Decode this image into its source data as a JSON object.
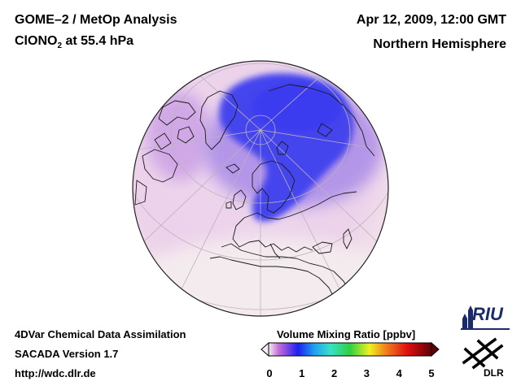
{
  "header": {
    "title_left": "GOME–2 / MetOp Analysis",
    "species_prefix": "ClONO",
    "species_sub": "2",
    "species_suffix": " at 55.4 hPa",
    "date": "Apr 12, 2009, 12:00 GMT",
    "region": "Northern Hemisphere"
  },
  "footer": {
    "line1": "4DVar Chemical Data Assimilation",
    "line2": "SACADA Version 1.7",
    "line3": "http://wdc.dlr.de"
  },
  "colorbar": {
    "title": "Volume Mixing Ratio [ppbv]",
    "ticks": [
      "0",
      "1",
      "2",
      "3",
      "4",
      "5"
    ],
    "stops": [
      "#f2eef2",
      "#c76fd8",
      "#1f1ff0",
      "#1fa0f0",
      "#38e0c8",
      "#30d040",
      "#f0f020",
      "#f08020",
      "#e01010",
      "#600008"
    ]
  },
  "map": {
    "palette": {
      "background": "#eed6ee",
      "pale": "#f6ecec",
      "high": "#4a4aee",
      "mid": "#b090e8",
      "coast": "#1a1a1a",
      "grid": "#c0b8c0"
    }
  },
  "logos": {
    "riu": "RIU",
    "dlr": "DLR"
  }
}
